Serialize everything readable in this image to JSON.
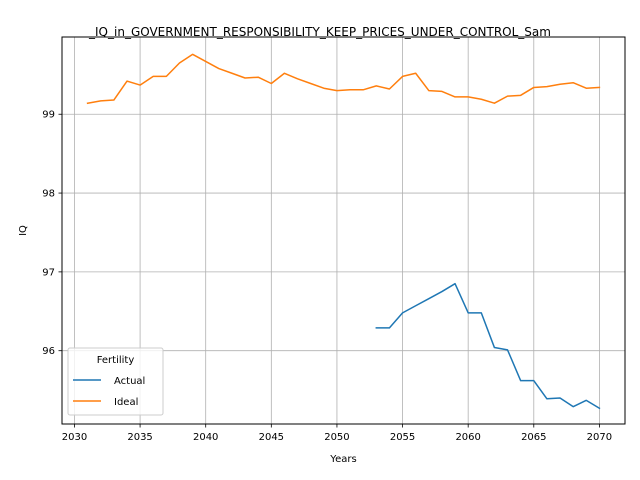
{
  "chart_data": {
    "type": "line",
    "title": "_IQ_in_GOVERNMENT_RESPONSIBILITY_KEEP_PRICES_UNDER_CONTROL_Sam",
    "xlabel": "Years",
    "ylabel": "IQ",
    "xlim": [
      2029.05,
      2071.95
    ],
    "ylim": [
      95.07,
      99.98
    ],
    "xticks": [
      2030,
      2035,
      2040,
      2045,
      2050,
      2055,
      2060,
      2065,
      2070
    ],
    "yticks": [
      96,
      97,
      98,
      99
    ],
    "grid": true,
    "legend": {
      "title": "Fertility",
      "placement": "lower-left"
    },
    "series": [
      {
        "name": "Actual",
        "color": "#1f77b4",
        "x": [
          2053,
          2054,
          2055,
          2056,
          2057,
          2058,
          2059,
          2060,
          2061,
          2062,
          2063,
          2064,
          2065,
          2066,
          2067,
          2068,
          2069,
          2070
        ],
        "y": [
          96.29,
          96.29,
          96.48,
          96.57,
          96.66,
          96.75,
          96.85,
          96.48,
          96.48,
          96.04,
          96.01,
          95.62,
          95.62,
          95.39,
          95.4,
          95.29,
          95.37,
          95.27
        ]
      },
      {
        "name": "Ideal",
        "color": "#ff7f0e",
        "x": [
          2031,
          2032,
          2033,
          2034,
          2035,
          2036,
          2037,
          2038,
          2039,
          2040,
          2041,
          2042,
          2043,
          2044,
          2045,
          2046,
          2047,
          2048,
          2049,
          2050,
          2051,
          2052,
          2053,
          2054,
          2055,
          2056,
          2057,
          2058,
          2059,
          2060,
          2061,
          2062,
          2063,
          2064,
          2065,
          2066,
          2067,
          2068,
          2069,
          2070
        ],
        "y": [
          99.14,
          99.17,
          99.18,
          99.42,
          99.37,
          99.48,
          99.48,
          99.65,
          99.76,
          99.67,
          99.58,
          99.52,
          99.46,
          99.47,
          99.39,
          99.52,
          99.45,
          99.39,
          99.33,
          99.3,
          99.31,
          99.31,
          99.36,
          99.32,
          99.48,
          99.52,
          99.3,
          99.29,
          99.22,
          99.22,
          99.19,
          99.14,
          99.23,
          99.24,
          99.34,
          99.35,
          99.38,
          99.4,
          99.33,
          99.34
        ]
      }
    ]
  }
}
